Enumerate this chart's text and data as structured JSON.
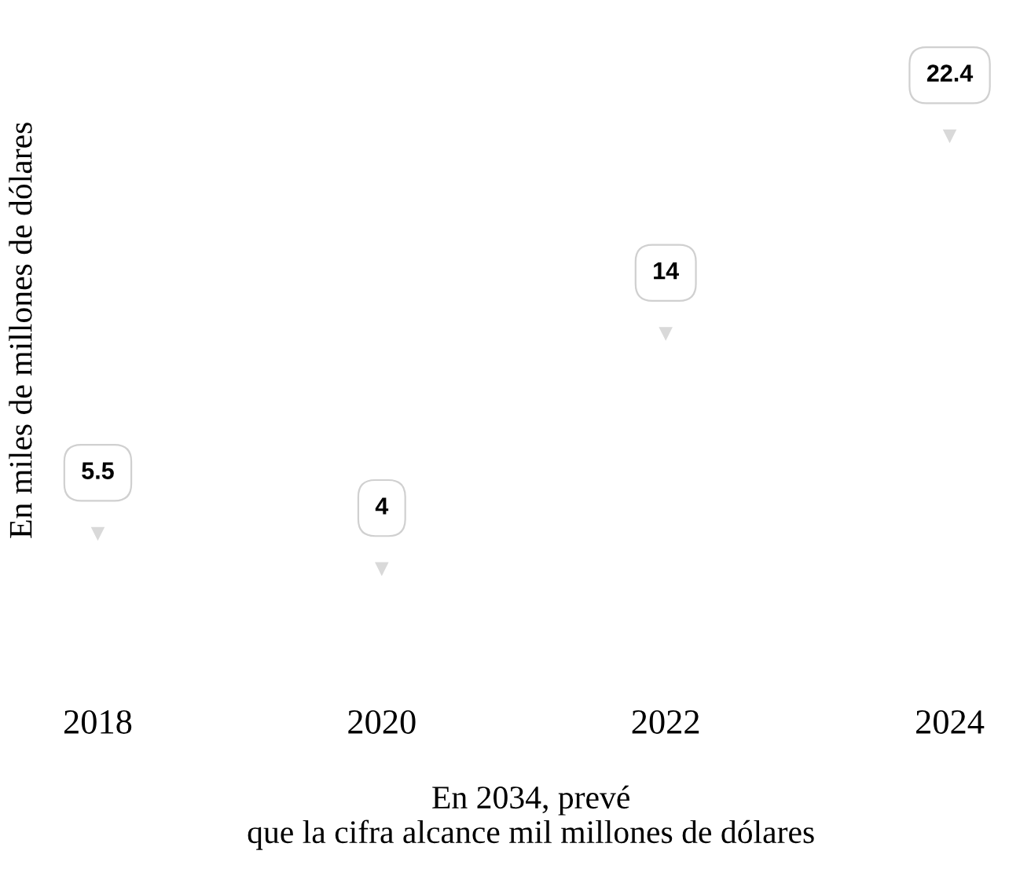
{
  "chart_data": {
    "type": "scatter",
    "categories": [
      "2018",
      "2020",
      "2022",
      "2024"
    ],
    "series": [
      {
        "color": "#d9d9d9",
        "values": [
          5.5,
          4,
          14,
          22.4
        ]
      }
    ],
    "ylabel": "En miles de millones de dólares",
    "annotations": [
      "En 2034, prevé\nque la cifra alcance mil millones de dólares"
    ],
    "data_labels": true,
    "marker": "triangle",
    "tick_labels": "x"
  }
}
